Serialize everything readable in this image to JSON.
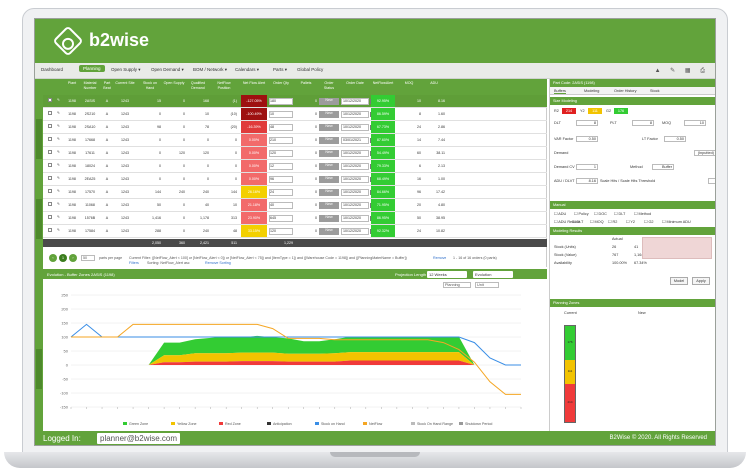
{
  "app": {
    "logo_text": "b2wise"
  },
  "toolbar": {
    "items": [
      "Dashboard",
      "Planning",
      "Open Supply ▾",
      "Open Demand ▾",
      "BOM / Network ▾",
      "Calendars ▾",
      "Parts ▾",
      "Global Policy"
    ],
    "active_index": 1,
    "right_icons": "▲ ✎ ▦ ⎙"
  },
  "grid": {
    "headers": [
      "",
      "",
      "Plant",
      "Material Number",
      "Part Beat",
      "Current Site",
      "Stock on Hand",
      "Open Supply",
      "Qualified Demand",
      "NetFlow Position",
      "Net Flow Alert",
      "Order Qty",
      "Pallets",
      "Order Status",
      "Order Date",
      "NetFlowAlert",
      "MOQ",
      "ADU"
    ],
    "rows": [
      {
        "plant": "1198",
        "mat": "2ASIS",
        "part": "A",
        "site": "1243",
        "soh": "15",
        "os": "0",
        "qd": "168",
        "nfp": "(1)",
        "nfa": "-127.05%",
        "oq": "180",
        "pal": "0",
        "st": "New",
        "date": "10/12/2020",
        "alert": "92.95%",
        "moq": "10",
        "adu": "8.16"
      },
      {
        "plant": "1198",
        "mat": "2S210",
        "part": "A",
        "site": "1243",
        "soh": "0",
        "os": "0",
        "qd": "10",
        "nfp": "(10)",
        "nfa": "-100.49%",
        "oq": "10",
        "pal": "0",
        "st": "New",
        "date": "10/12/2020",
        "alert": "86.59%",
        "moq": "8",
        "adu": "1.60"
      },
      {
        "plant": "1198",
        "mat": "2SA10",
        "part": "A",
        "site": "1243",
        "soh": "98",
        "os": "0",
        "qd": "78",
        "nfp": "(20)",
        "nfa": "-16.39%",
        "oq": "48",
        "pal": "0",
        "st": "New",
        "date": "10/12/2020",
        "alert": "67.73%",
        "moq": "24",
        "adu": "2.86"
      },
      {
        "plant": "1198",
        "mat": "17668",
        "part": "A",
        "site": "1243",
        "soh": "0",
        "os": "0",
        "qd": "0",
        "nfp": "0",
        "nfa": "0.00%",
        "oq": "210",
        "pal": "0",
        "st": "New",
        "date": "03/01/2021",
        "alert": "87.60%",
        "moq": "14",
        "adu": "7.44"
      },
      {
        "plant": "1198",
        "mat": "17611",
        "part": "A",
        "site": "1243",
        "soh": "0",
        "os": "120",
        "qd": "120",
        "nfp": "0",
        "nfa": "0.00%",
        "oq": "120",
        "pal": "0",
        "st": "New",
        "date": "10/12/2020",
        "alert": "54.49%",
        "moq": "60",
        "adu": "38.11"
      },
      {
        "plant": "1198",
        "mat": "18024",
        "part": "A",
        "site": "1243",
        "soh": "0",
        "os": "0",
        "qd": "0",
        "nfp": "0",
        "nfa": "0.00%",
        "oq": "12",
        "pal": "0",
        "st": "New",
        "date": "10/12/2020",
        "alert": "79.33%",
        "moq": "6",
        "adu": "2.13"
      },
      {
        "plant": "1198",
        "mat": "2EA25",
        "part": "A",
        "site": "1243",
        "soh": "0",
        "os": "0",
        "qd": "0",
        "nfp": "0",
        "nfa": "0.00%",
        "oq": "96",
        "pal": "0",
        "st": "New",
        "date": "10/12/2020",
        "alert": "68.49%",
        "moq": "16",
        "adu": "1.00"
      },
      {
        "plant": "1198",
        "mat": "17570",
        "part": "A",
        "site": "1243",
        "soh": "144",
        "os": "240",
        "qd": "240",
        "nfp": "144",
        "nfa": "26.16%",
        "oq": "24",
        "pal": "0",
        "st": "New",
        "date": "10/12/2020",
        "alert": "84.66%",
        "moq": "96",
        "adu": "17.42"
      },
      {
        "plant": "1198",
        "mat": "11068",
        "part": "A",
        "site": "1243",
        "soh": "50",
        "os": "0",
        "qd": "40",
        "nfp": "10",
        "nfa": "21.18%",
        "oq": "40",
        "pal": "0",
        "st": "New",
        "date": "10/12/2020",
        "alert": "71.95%",
        "moq": "20",
        "adu": "4.80"
      },
      {
        "plant": "1198",
        "mat": "1576B",
        "part": "A",
        "site": "1243",
        "soh": "1,416",
        "os": "0",
        "qd": "1,178",
        "nfp": "313",
        "nfa": "23.90%",
        "oq": "645",
        "pal": "0",
        "st": "New",
        "date": "10/12/2020",
        "alert": "86.95%",
        "moq": "50",
        "adu": "38.95"
      },
      {
        "plant": "1198",
        "mat": "17584",
        "part": "A",
        "site": "1243",
        "soh": "288",
        "os": "0",
        "qd": "240",
        "nfp": "48",
        "nfa": "33.15%",
        "oq": "120",
        "pal": "0",
        "st": "New",
        "date": "10/12/2020",
        "alert": "92.32%",
        "moq": "24",
        "adu": "10.82"
      }
    ],
    "totals": [
      "2,050",
      "360",
      "2,421",
      "511",
      "1,229"
    ],
    "pager": {
      "page": "1",
      "per_page": "50",
      "per_page_label": "parts per page",
      "filter_text": "Current Filter: ([NetFlow_Alert < 100] or [NetFlow_Alert < 0]) or [NetFlow_Alert < 75]) and [ItemType = 1]) and ([Warehouse Code = 1198]) and ([PlanningMaterName = Buffer])",
      "remove": "Remove",
      "count": "1 - 16 of 16 orders (0 parts)",
      "filters": "Filters",
      "sorting": "Sorting: NetFlow_Alert asc",
      "remove_sorting": "Remove Sorting"
    }
  },
  "chart_panel": {
    "title": "Evolution - Buffer Zones",
    "part": "2ASIS (1198)",
    "projection_label": "Projection Length",
    "projection_value": "12 Weeks",
    "mode_value": "Evolution",
    "toolbar_left": "Planning",
    "toolbar_right": "Unit"
  },
  "chart_data": {
    "type": "area",
    "y_ticks": [
      "250",
      "200",
      "150",
      "100",
      "50",
      "0",
      "-50",
      "-100",
      "-150"
    ],
    "ylim": [
      -150,
      250
    ],
    "x_count": 30,
    "series": [
      {
        "name": "Green Zone",
        "color": "#33cc33",
        "values": [
          0,
          0,
          0,
          0,
          0,
          0,
          0,
          0,
          0,
          0,
          0,
          0,
          0,
          0,
          0,
          0,
          0,
          0,
          0,
          0,
          0,
          0,
          0,
          0,
          0,
          0,
          0,
          0,
          0,
          0
        ]
      },
      {
        "name": "Yellow Zone",
        "color": "#f2c300",
        "values": [
          0,
          0,
          0,
          0,
          0,
          0,
          0,
          0,
          0,
          0,
          0,
          0,
          0,
          0,
          0,
          0,
          0,
          0,
          0,
          0,
          0,
          0,
          0,
          0,
          0,
          0,
          0,
          0,
          0,
          0
        ]
      },
      {
        "name": "Red Zone",
        "color": "#f03a3a",
        "values": [
          0,
          0,
          0,
          0,
          0,
          0,
          0,
          0,
          0,
          0,
          0,
          0,
          0,
          0,
          0,
          0,
          0,
          0,
          0,
          0,
          0,
          0,
          0,
          0,
          0,
          0,
          0,
          0,
          0,
          0
        ]
      },
      {
        "name": "Anticipation",
        "color": "#333333",
        "values": []
      },
      {
        "name": "Stock on Hand",
        "color": "#3a8ee6",
        "values": [
          100,
          145,
          100,
          100,
          100,
          100,
          100,
          100,
          100,
          100,
          100,
          100,
          100,
          100,
          100,
          100,
          100,
          100,
          100,
          100,
          100,
          100,
          100,
          100,
          100,
          100,
          80,
          25,
          0,
          0
        ]
      },
      {
        "name": "NetFlow",
        "color": "#f5a623",
        "values": [
          100,
          100,
          100,
          100,
          145,
          145,
          145,
          145,
          145,
          145,
          145,
          145,
          145,
          130,
          95,
          95,
          95,
          90,
          90,
          90,
          90,
          90,
          90,
          90,
          80,
          55,
          10,
          -60,
          -105,
          -105
        ]
      },
      {
        "name": "Stock On Hand Range",
        "color": "#bbbbbb",
        "values": []
      },
      {
        "name": "Shutdown Period",
        "color": "#999999",
        "values": []
      }
    ],
    "zones": {
      "red": [
        0,
        0,
        0,
        0,
        0,
        0,
        10,
        10,
        12,
        12,
        12,
        14,
        14,
        14,
        12,
        12,
        12,
        12,
        16,
        16,
        16,
        16,
        16,
        16,
        16,
        16,
        0,
        0,
        0,
        0
      ],
      "yellow": [
        0,
        0,
        0,
        0,
        0,
        0,
        25,
        25,
        30,
        30,
        30,
        30,
        30,
        30,
        28,
        28,
        28,
        30,
        30,
        30,
        30,
        30,
        30,
        30,
        30,
        30,
        0,
        0,
        0,
        0
      ],
      "green": [
        0,
        0,
        0,
        0,
        0,
        0,
        45,
        45,
        50,
        55,
        60,
        55,
        60,
        55,
        55,
        45,
        45,
        50,
        55,
        55,
        55,
        55,
        55,
        55,
        55,
        55,
        0,
        0,
        0,
        0
      ]
    }
  },
  "right_panel": {
    "part_code_label": "Part Code",
    "part_code": "2ASIS (1198)",
    "tabs": [
      "Buffers",
      "Modeling",
      "Order History",
      "Stock"
    ],
    "active_tab": 0,
    "section_buffer": "Size Modeling",
    "chips": [
      {
        "label": "R2",
        "value": "214",
        "color": "#e02020"
      },
      {
        "label": "Y2",
        "value": "111",
        "color": "#f2c300"
      },
      {
        "label": "G2",
        "value": "176",
        "color": "#33cc33"
      }
    ],
    "fields": [
      {
        "label": "DLT",
        "value": "8"
      },
      {
        "label": "PLT",
        "value": "8"
      },
      {
        "label": "MOQ",
        "value": "10"
      },
      {
        "label": "VAR Factor",
        "value": "0.50"
      },
      {
        "label": "LT Factor",
        "value": "0.50"
      },
      {
        "label": "Demand",
        "value": "(Inputted)"
      },
      {
        "label": "Demand CV",
        "value": "1"
      },
      {
        "label": "Method",
        "value": "Buffer"
      },
      {
        "label": "ADU / DLVT",
        "value": "8.16"
      },
      {
        "label": "Scale Hits / Scale Hits Threshold",
        "value": "2.4"
      }
    ],
    "section_manual": "Manual",
    "manual_opts": [
      "ADU",
      "Policy",
      "DOC",
      "DLT",
      "Method"
    ],
    "manual_opts2": [
      "ADU Reduce",
      "DLT",
      "MOQ",
      "R2",
      "Y2",
      "G2",
      "Minimum ADU"
    ],
    "section_results": "Modeling Results",
    "results_head": [
      "Actual",
      "Model",
      "Proposed"
    ],
    "results": [
      {
        "label": "Stock (Units)",
        "actual": "26",
        "model": "41"
      },
      {
        "label": "Stock (Value)",
        "actual": "767",
        "model": "1,164"
      },
      {
        "label": "Availability",
        "actual": "100.00%",
        "model": "67.34%"
      }
    ],
    "buttons": [
      "Model",
      "Apply"
    ],
    "section_zones": "Planning Zones",
    "zone_head": [
      "Current",
      "New"
    ],
    "zone_values": [
      "176",
      "111",
      "214"
    ]
  },
  "footer": {
    "logged_in": "Logged In:",
    "user": "planner@b2wise.com",
    "copyright": "B2Wise © 2020. All Rights Reserved"
  }
}
